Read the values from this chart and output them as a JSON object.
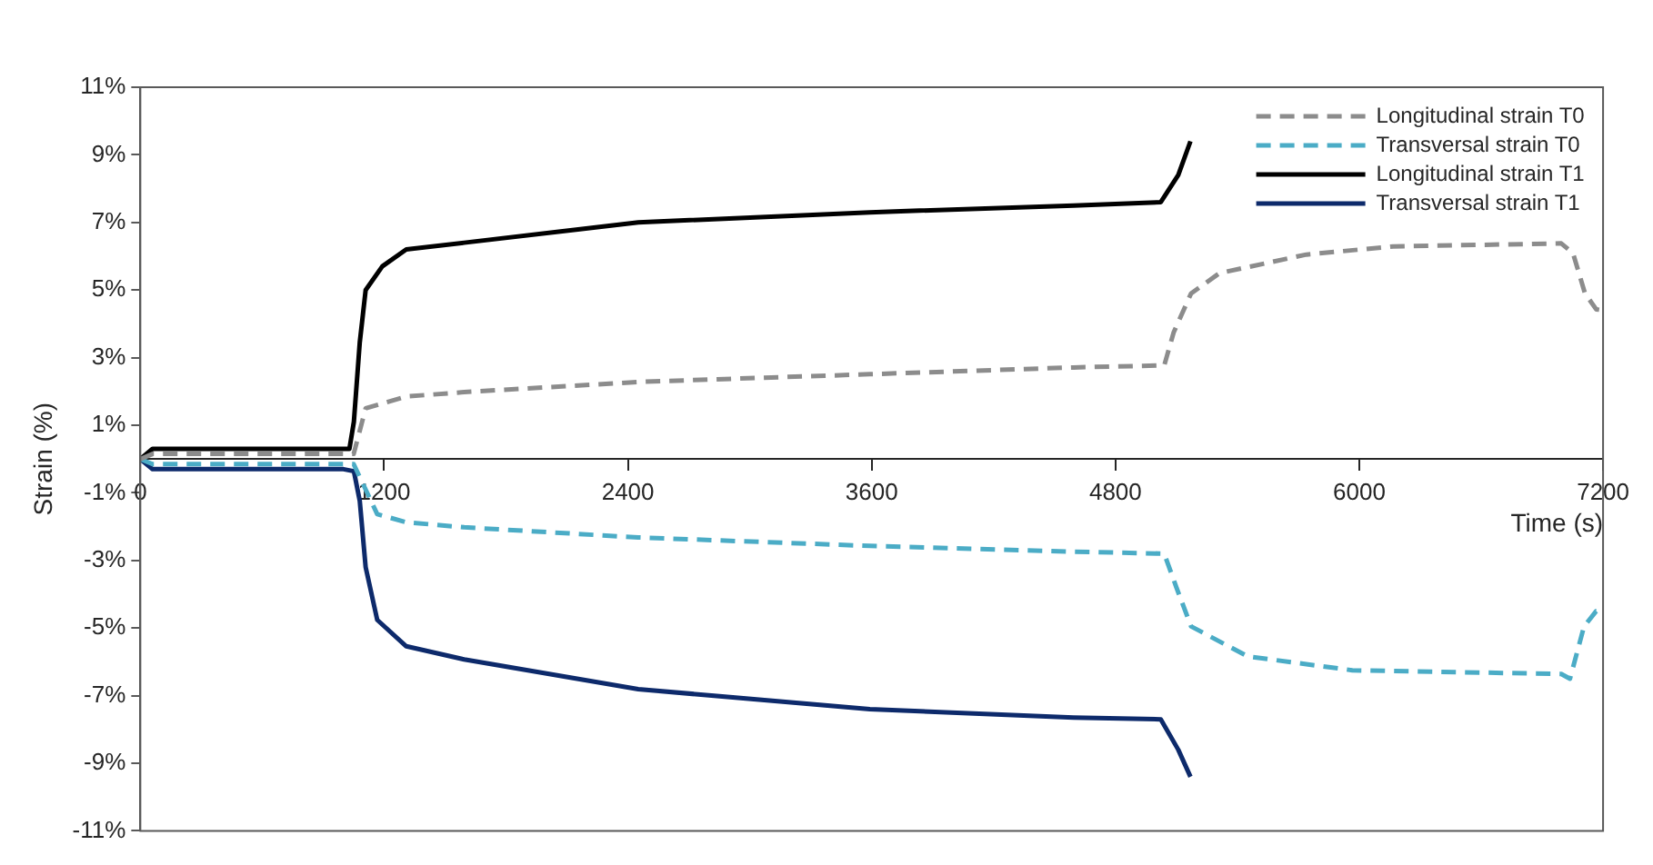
{
  "chart_data": {
    "type": "line",
    "xlabel": "Time (s)",
    "ylabel": "Strain (%)",
    "xlim": [
      0,
      7200
    ],
    "xticks": [
      0,
      1200,
      2400,
      3600,
      4800,
      6000,
      7200
    ],
    "ylim": [
      -11,
      11
    ],
    "yticks": [
      {
        "value": -11,
        "label": "-11%"
      },
      {
        "value": -9,
        "label": "-9%"
      },
      {
        "value": -7,
        "label": "-7%"
      },
      {
        "value": -5,
        "label": "-5%"
      },
      {
        "value": -3,
        "label": "-3%"
      },
      {
        "value": -1,
        "label": "-1%"
      },
      {
        "value": 1,
        "label": "1%"
      },
      {
        "value": 3,
        "label": "3%"
      },
      {
        "value": 5,
        "label": "5%"
      },
      {
        "value": 7,
        "label": "7%"
      },
      {
        "value": 9,
        "label": "9%"
      },
      {
        "value": 11,
        "label": "11%"
      }
    ],
    "grid": false,
    "legend": "top right",
    "marker": "none",
    "series": [
      {
        "name": "Longitudinal strain T0",
        "color": "#8c8c8c",
        "line_style": "dashed",
        "x": [
          0,
          60,
          1050,
          1109,
          1309,
          1594,
          2451,
          3591,
          4594,
          5040,
          5086,
          5172,
          5312,
          5740,
          6166,
          6994,
          7052,
          7111,
          7166,
          7200
        ],
        "values": [
          0,
          0.15,
          0.15,
          1.5,
          1.85,
          1.98,
          2.28,
          2.51,
          2.71,
          2.77,
          3.74,
          4.9,
          5.5,
          6.05,
          6.29,
          6.38,
          6.09,
          4.9,
          4.43,
          4.4
        ]
      },
      {
        "name": "Transversal strain T0",
        "color": "#4bacc6",
        "line_style": "dashed",
        "x": [
          0,
          60,
          1050,
          1166,
          1309,
          1594,
          2451,
          3591,
          4594,
          5040,
          5100,
          5172,
          5451,
          5966,
          6994,
          7037,
          7106,
          7166,
          7200
        ],
        "values": [
          0,
          -0.15,
          -0.15,
          -1.63,
          -1.87,
          -2.02,
          -2.32,
          -2.57,
          -2.74,
          -2.8,
          -3.8,
          -4.95,
          -5.84,
          -6.25,
          -6.36,
          -6.5,
          -4.96,
          -4.5,
          -4.5
        ]
      },
      {
        "name": "Longitudinal strain T1",
        "color": "#000000",
        "line_style": "solid",
        "x": [
          0,
          60,
          1000,
          1029,
          1051,
          1080,
          1109,
          1191,
          1309,
          1594,
          2451,
          3591,
          4594,
          5023,
          5109,
          5169
        ],
        "values": [
          0,
          0.3,
          0.3,
          0.3,
          1.1,
          3.45,
          5.0,
          5.7,
          6.2,
          6.4,
          7.0,
          7.3,
          7.5,
          7.6,
          8.4,
          9.4
        ]
      },
      {
        "name": "Transversal strain T1",
        "color": "#0d2a6b",
        "line_style": "solid",
        "x": [
          0,
          60,
          1000,
          1051,
          1080,
          1109,
          1166,
          1309,
          1594,
          2451,
          3591,
          4594,
          5023,
          5109,
          5169
        ],
        "values": [
          0,
          -0.3,
          -0.3,
          -0.36,
          -1.24,
          -3.2,
          -4.76,
          -5.54,
          -5.93,
          -6.81,
          -7.4,
          -7.65,
          -7.7,
          -8.6,
          -9.4
        ]
      }
    ]
  }
}
